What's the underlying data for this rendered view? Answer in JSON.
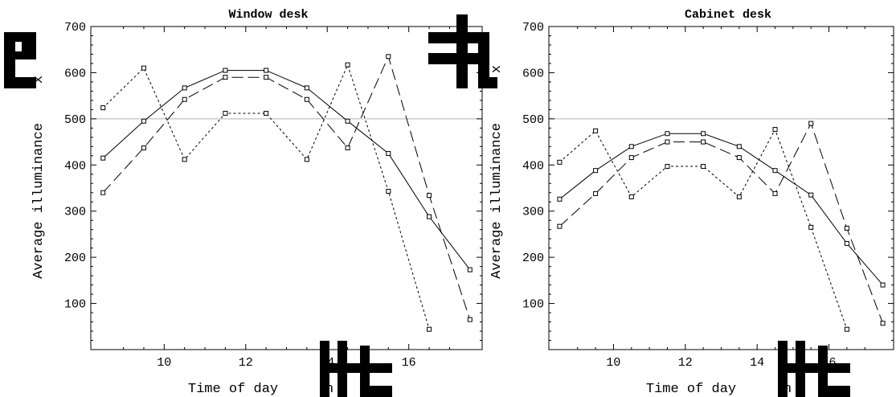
{
  "chart_data": [
    {
      "type": "line",
      "title": "Window desk",
      "xlabel": "Time of day",
      "ylabel": "Average illuminance",
      "ylabel_unit_fragment": "x",
      "xlabel_unit_fragment": "n",
      "xticks": [
        10,
        12,
        14,
        16
      ],
      "yticks": [
        100,
        200,
        300,
        400,
        500,
        600,
        700
      ],
      "xlim": [
        8.2,
        17.8
      ],
      "ylim": [
        0,
        700
      ],
      "reference_line": 500,
      "grid": false,
      "series": [
        {
          "style": "solid",
          "x": [
            8.5,
            9.5,
            10.5,
            11.5,
            12.5,
            13.5,
            14.5,
            15.5,
            16.5,
            17.5
          ],
          "y": [
            415,
            495,
            567,
            605,
            605,
            567,
            495,
            425,
            288,
            173
          ]
        },
        {
          "style": "long-dash",
          "x": [
            8.5,
            9.5,
            10.5,
            11.5,
            12.5,
            13.5,
            14.5,
            15.5,
            16.5,
            17.5
          ],
          "y": [
            340,
            437,
            542,
            590,
            590,
            542,
            437,
            635,
            334,
            65
          ]
        },
        {
          "style": "short-dash",
          "x": [
            8.5,
            9.5,
            10.5,
            11.5,
            12.5,
            13.5,
            14.5,
            15.5,
            16.5
          ],
          "y": [
            524,
            610,
            412,
            512,
            512,
            412,
            617,
            343,
            44
          ]
        }
      ]
    },
    {
      "type": "line",
      "title": "Cabinet desk",
      "xlabel": "Time of day",
      "ylabel": "Average illuminance",
      "ylabel_unit_fragment": "x",
      "xlabel_unit_fragment": "n",
      "xticks": [
        10,
        12,
        14,
        16
      ],
      "yticks": [
        100,
        200,
        300,
        400,
        500,
        600,
        700
      ],
      "xlim": [
        8.2,
        17.8
      ],
      "ylim": [
        0,
        700
      ],
      "reference_line": 500,
      "grid": false,
      "series": [
        {
          "style": "solid",
          "x": [
            8.5,
            9.5,
            10.5,
            11.5,
            12.5,
            13.5,
            14.5,
            15.5,
            16.5,
            17.5
          ],
          "y": [
            326,
            388,
            440,
            468,
            468,
            440,
            388,
            335,
            230,
            140
          ]
        },
        {
          "style": "long-dash",
          "x": [
            8.5,
            9.5,
            10.5,
            11.5,
            12.5,
            13.5,
            14.5,
            15.5,
            16.5,
            17.5
          ],
          "y": [
            267,
            338,
            416,
            450,
            450,
            416,
            338,
            490,
            263,
            57
          ]
        },
        {
          "style": "short-dash",
          "x": [
            8.5,
            9.5,
            10.5,
            11.5,
            12.5,
            13.5,
            14.5,
            15.5,
            16.5
          ],
          "y": [
            406,
            474,
            331,
            397,
            397,
            331,
            477,
            265,
            44
          ]
        }
      ]
    }
  ]
}
